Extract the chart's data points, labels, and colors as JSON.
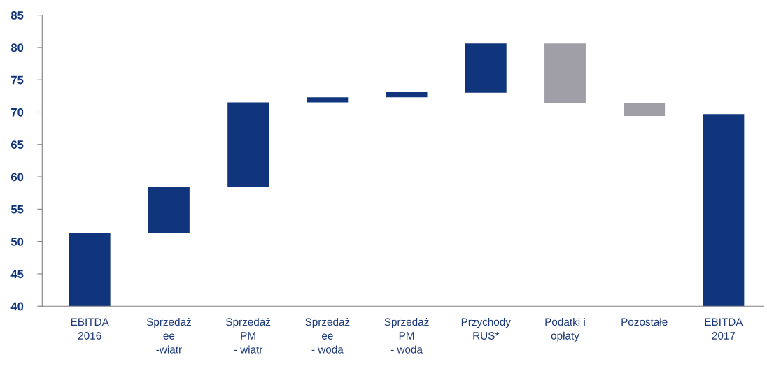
{
  "chart_data": {
    "type": "bar",
    "categories": [
      "EBITDA\n2016",
      "Sprzedaż\nee\n-wiatr",
      "Sprzedaż\nPM\n- wiatr",
      "Sprzedaż\nee\n- woda",
      "Sprzedaż\nPM\n- woda",
      "Przychody\nRUS*",
      "Podatki i\nopłaty",
      "Pozostałe",
      "EBITDA\n2017"
    ],
    "values": [
      11.3,
      7.1,
      13.1,
      0.8,
      0.8,
      7.6,
      -9.2,
      -2.0,
      29.7
    ],
    "base": [
      40,
      51.3,
      58.4,
      71.5,
      72.3,
      73.0,
      80.6,
      71.4,
      40
    ],
    "colors": [
      "#10357c",
      "#10357c",
      "#10357c",
      "#10357c",
      "#10357c",
      "#10357c",
      "#a09fa8",
      "#a09fa8",
      "#10357c"
    ],
    "ylim": [
      40,
      85
    ],
    "yticks": [
      40,
      45,
      50,
      55,
      60,
      65,
      70,
      75,
      80,
      85
    ],
    "grid": false,
    "legend": false
  }
}
